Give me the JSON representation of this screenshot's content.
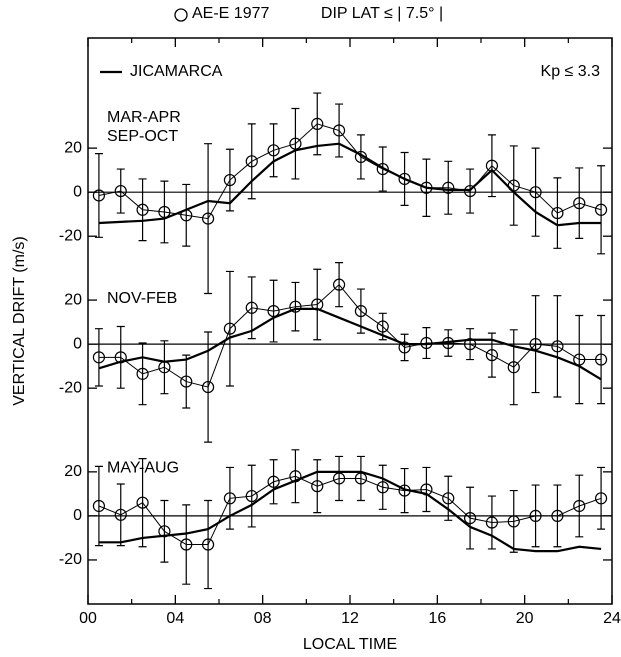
{
  "chart_data": {
    "type": "line",
    "title": "DIP LAT ≤ | 7.5° |",
    "xlabel": "LOCAL TIME",
    "ylabel": "VERTICAL DRIFT (m/s)",
    "annotation": "Kp ≤ 3.3",
    "legend": [
      {
        "name": "AE-E 1977",
        "marker": "circle"
      },
      {
        "name": "JICAMARCA",
        "marker": "line"
      }
    ],
    "xlim": [
      0,
      24
    ],
    "xticks": [
      {
        "value": 0,
        "label": "00"
      },
      {
        "value": 4,
        "label": "04"
      },
      {
        "value": 8,
        "label": "08"
      },
      12,
      16,
      20,
      24
    ],
    "x_minor_ticks": [
      2,
      6,
      10,
      14,
      18,
      22
    ],
    "x": [
      0.5,
      1.5,
      2.5,
      3.5,
      4.5,
      5.5,
      6.5,
      7.5,
      8.5,
      9.5,
      10.5,
      11.5,
      12.5,
      13.5,
      14.5,
      15.5,
      16.5,
      17.5,
      18.5,
      19.5,
      20.5,
      21.5,
      22.5,
      23.5
    ],
    "zero_line": true,
    "panels": [
      {
        "label": [
          "MAR-APR",
          "SEP-OCT"
        ],
        "ylim": [
          -32,
          70
        ],
        "yticks": [
          -20,
          0,
          20
        ],
        "observed": [
          -1.5,
          0.5,
          -8,
          -9,
          -10.5,
          -12,
          5.5,
          14,
          19,
          22,
          31,
          28,
          16,
          10.5,
          6,
          2,
          2,
          0.5,
          12,
          3,
          0,
          -9.5,
          -5,
          -8
        ],
        "errors": [
          19,
          10,
          14,
          14,
          14,
          34,
          14,
          17,
          12,
          16,
          14,
          12,
          10,
          10,
          12,
          13,
          12,
          10,
          14,
          18,
          20,
          16,
          16,
          20
        ],
        "jicamarca": [
          -14,
          -13.5,
          -13,
          -12,
          -8,
          -4,
          -5,
          5,
          14,
          19,
          21,
          22,
          17,
          11,
          6,
          2,
          1,
          1,
          10,
          0,
          -9,
          -15,
          -14,
          -14
        ]
      },
      {
        "label": [
          "NOV-FEB"
        ],
        "ylim": [
          -40,
          37
        ],
        "yticks": [
          -20,
          0,
          20
        ],
        "observed": [
          -6,
          -6,
          -13.5,
          -10.5,
          -17,
          -19.5,
          7,
          16.5,
          15,
          17,
          18,
          27,
          15,
          8,
          -1.5,
          0.5,
          0.5,
          0,
          -5,
          -10.5,
          0,
          -1,
          -7,
          -7
        ],
        "errors": [
          13,
          14,
          14,
          12,
          12,
          25,
          26,
          14,
          14,
          11,
          16,
          10,
          10,
          6,
          6,
          7,
          6,
          7,
          10,
          17,
          22,
          23,
          20,
          20
        ],
        "jicamarca": [
          -11,
          -8,
          -6,
          -8,
          -7,
          -3,
          3,
          6,
          12,
          16,
          16,
          12,
          8,
          4,
          0,
          0,
          1,
          2,
          2,
          -1,
          -3,
          -6,
          -10,
          -16
        ]
      },
      {
        "label": [
          "MAY-AUG"
        ],
        "ylim": [
          -40,
          38
        ],
        "yticks": [
          -20,
          0,
          20
        ],
        "observed": [
          4.5,
          0.5,
          6,
          -7,
          -13,
          -13,
          8,
          9,
          15.5,
          18,
          13.5,
          17,
          17,
          13,
          11.5,
          12,
          8,
          -1,
          -3,
          -2.5,
          0,
          0,
          4.5,
          8
        ],
        "errors": [
          18,
          14,
          20,
          14,
          18,
          20,
          14,
          14,
          10,
          12,
          12,
          10,
          10,
          10,
          10,
          10,
          10,
          14,
          12,
          14,
          14,
          14,
          14,
          14
        ],
        "jicamarca": [
          -12,
          -12,
          -10,
          -9,
          -8,
          -6,
          0,
          5,
          12,
          16,
          20,
          20,
          20,
          17,
          12,
          10,
          3,
          -5,
          -9,
          -15,
          -16,
          -16,
          -14,
          -15
        ]
      }
    ]
  }
}
